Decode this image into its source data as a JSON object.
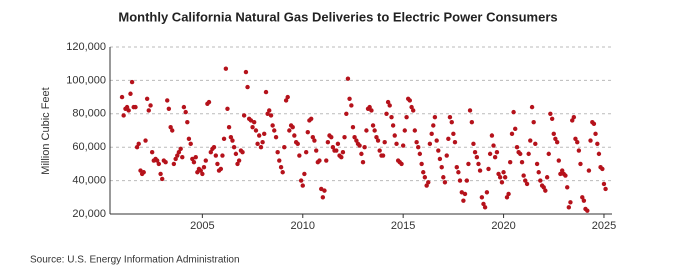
{
  "chart_data": {
    "type": "scatter",
    "title": "Monthly California Natural Gas Deliveries to Electric Power Consumers",
    "y_label": "Million Cubic Feet",
    "source": "Source: U.S. Energy Information Administration",
    "color": "#b5121b",
    "grid": true,
    "xlim": [
      2000.4,
      2025.4
    ],
    "xticks": [
      2005,
      2010,
      2015,
      2020,
      2025
    ],
    "ylim": [
      20000,
      120000
    ],
    "yticks": [
      {
        "value": 20000,
        "label": "20,000"
      },
      {
        "value": 40000,
        "label": "40,000"
      },
      {
        "value": 60000,
        "label": "60,000"
      },
      {
        "value": 80000,
        "label": "80,000"
      },
      {
        "value": 100000,
        "label": "100,000"
      },
      {
        "value": 120000,
        "label": "120,000"
      }
    ],
    "x": [
      2001.0,
      2001.08,
      2001.17,
      2001.25,
      2001.33,
      2001.42,
      2001.5,
      2001.58,
      2001.67,
      2001.75,
      2001.83,
      2001.92,
      2002.0,
      2002.08,
      2002.17,
      2002.25,
      2002.33,
      2002.42,
      2002.5,
      2002.58,
      2002.67,
      2002.75,
      2002.83,
      2002.92,
      2003.0,
      2003.08,
      2003.17,
      2003.25,
      2003.33,
      2003.42,
      2003.5,
      2003.58,
      2003.67,
      2003.75,
      2003.83,
      2003.92,
      2004.0,
      2004.08,
      2004.17,
      2004.25,
      2004.33,
      2004.42,
      2004.5,
      2004.58,
      2004.67,
      2004.75,
      2004.83,
      2004.92,
      2005.0,
      2005.08,
      2005.17,
      2005.25,
      2005.33,
      2005.42,
      2005.5,
      2005.58,
      2005.67,
      2005.75,
      2005.83,
      2005.92,
      2006.0,
      2006.08,
      2006.17,
      2006.25,
      2006.33,
      2006.42,
      2006.5,
      2006.58,
      2006.67,
      2006.75,
      2006.83,
      2006.92,
      2007.0,
      2007.08,
      2007.17,
      2007.25,
      2007.33,
      2007.42,
      2007.5,
      2007.58,
      2007.67,
      2007.75,
      2007.83,
      2007.92,
      2008.0,
      2008.08,
      2008.17,
      2008.25,
      2008.33,
      2008.42,
      2008.5,
      2008.58,
      2008.67,
      2008.75,
      2008.83,
      2008.92,
      2009.0,
      2009.08,
      2009.17,
      2009.25,
      2009.33,
      2009.42,
      2009.5,
      2009.58,
      2009.67,
      2009.75,
      2009.83,
      2009.92,
      2010.0,
      2010.08,
      2010.17,
      2010.25,
      2010.33,
      2010.42,
      2010.5,
      2010.58,
      2010.67,
      2010.75,
      2010.83,
      2010.92,
      2011.0,
      2011.08,
      2011.17,
      2011.25,
      2011.33,
      2011.42,
      2011.5,
      2011.58,
      2011.67,
      2011.75,
      2011.83,
      2011.92,
      2012.0,
      2012.08,
      2012.17,
      2012.25,
      2012.33,
      2012.42,
      2012.5,
      2012.58,
      2012.67,
      2012.75,
      2012.83,
      2012.92,
      2013.0,
      2013.08,
      2013.17,
      2013.25,
      2013.33,
      2013.42,
      2013.5,
      2013.58,
      2013.67,
      2013.75,
      2013.83,
      2013.92,
      2014.0,
      2014.08,
      2014.17,
      2014.25,
      2014.33,
      2014.42,
      2014.5,
      2014.58,
      2014.67,
      2014.75,
      2014.83,
      2014.92,
      2015.0,
      2015.08,
      2015.17,
      2015.25,
      2015.33,
      2015.42,
      2015.5,
      2015.58,
      2015.67,
      2015.75,
      2015.83,
      2015.92,
      2016.0,
      2016.08,
      2016.17,
      2016.25,
      2016.33,
      2016.42,
      2016.5,
      2016.58,
      2016.67,
      2016.75,
      2016.83,
      2016.92,
      2017.0,
      2017.08,
      2017.17,
      2017.25,
      2017.33,
      2017.42,
      2017.5,
      2017.58,
      2017.67,
      2017.75,
      2017.83,
      2017.92,
      2018.0,
      2018.08,
      2018.17,
      2018.25,
      2018.33,
      2018.42,
      2018.5,
      2018.58,
      2018.67,
      2018.75,
      2018.83,
      2018.92,
      2019.0,
      2019.08,
      2019.17,
      2019.25,
      2019.33,
      2019.42,
      2019.5,
      2019.58,
      2019.67,
      2019.75,
      2019.83,
      2019.92,
      2020.0,
      2020.08,
      2020.17,
      2020.25,
      2020.33,
      2020.42,
      2020.5,
      2020.58,
      2020.67,
      2020.75,
      2020.83,
      2020.92,
      2021.0,
      2021.08,
      2021.17,
      2021.25,
      2021.33,
      2021.42,
      2021.5,
      2021.58,
      2021.67,
      2021.75,
      2021.83,
      2021.92,
      2022.0,
      2022.08,
      2022.17,
      2022.25,
      2022.33,
      2022.42,
      2022.5,
      2022.58,
      2022.67,
      2022.75,
      2022.83,
      2022.92,
      2023.0,
      2023.08,
      2023.17,
      2023.25,
      2023.33,
      2023.42,
      2023.5,
      2023.58,
      2023.67,
      2023.75,
      2023.83,
      2023.92,
      2024.0,
      2024.08,
      2024.17,
      2024.25,
      2024.33,
      2024.42,
      2024.5,
      2024.58,
      2024.67,
      2024.75,
      2024.83,
      2024.92,
      2025.0,
      2025.08
    ],
    "values": [
      90000,
      79000,
      83000,
      84000,
      82000,
      92000,
      99000,
      84000,
      84000,
      60000,
      62000,
      46000,
      44000,
      45000,
      64000,
      89000,
      82000,
      85000,
      57000,
      52000,
      53000,
      52000,
      50000,
      44000,
      41000,
      52000,
      51000,
      88000,
      83000,
      72000,
      70000,
      50000,
      53000,
      55000,
      57000,
      59000,
      54000,
      84000,
      81000,
      75000,
      65000,
      62000,
      53000,
      51000,
      54000,
      45000,
      47000,
      46000,
      44000,
      48000,
      52000,
      86000,
      87000,
      57000,
      59000,
      60000,
      55000,
      50000,
      46000,
      47000,
      55000,
      65000,
      107000,
      83000,
      72000,
      66000,
      64000,
      60000,
      56000,
      50000,
      52000,
      58000,
      57000,
      79000,
      105000,
      96000,
      77000,
      76000,
      72000,
      75000,
      70000,
      62000,
      67000,
      60000,
      63000,
      68000,
      93000,
      80000,
      82000,
      79000,
      73000,
      70000,
      66000,
      57000,
      52000,
      48000,
      45000,
      60000,
      88000,
      90000,
      70000,
      73000,
      72000,
      67000,
      63000,
      62000,
      55000,
      40000,
      37000,
      44000,
      57000,
      69000,
      76000,
      77000,
      66000,
      64000,
      58000,
      51000,
      52000,
      35000,
      30000,
      34000,
      52000,
      63000,
      67000,
      66000,
      60000,
      58000,
      58000,
      62000,
      55000,
      54000,
      57000,
      66000,
      80000,
      101000,
      89000,
      85000,
      72000,
      66000,
      64000,
      62000,
      61000,
      56000,
      51000,
      60000,
      70000,
      83000,
      84000,
      82000,
      73000,
      70000,
      66000,
      64000,
      58000,
      55000,
      55000,
      63000,
      80000,
      87000,
      85000,
      78000,
      73000,
      67000,
      62000,
      52000,
      51000,
      50000,
      61000,
      70000,
      78000,
      89000,
      88000,
      84000,
      82000,
      70000,
      63000,
      60000,
      56000,
      50000,
      45000,
      42000,
      37000,
      39000,
      62000,
      68000,
      73000,
      78000,
      64000,
      58000,
      53000,
      48000,
      42000,
      39000,
      55000,
      65000,
      78000,
      75000,
      68000,
      63000,
      48000,
      45000,
      40000,
      33000,
      28000,
      32000,
      40000,
      50000,
      82000,
      75000,
      62000,
      57000,
      54000,
      50000,
      46000,
      30000,
      26000,
      24000,
      33000,
      47000,
      56000,
      67000,
      61000,
      54000,
      57000,
      44000,
      42000,
      39000,
      45000,
      42000,
      30000,
      32000,
      51000,
      68000,
      81000,
      71000,
      60000,
      57000,
      56000,
      51000,
      43000,
      40000,
      38000,
      56000,
      64000,
      84000,
      75000,
      62000,
      50000,
      45000,
      40000,
      37000,
      36000,
      34000,
      42000,
      56000,
      80000,
      77000,
      68000,
      65000,
      63000,
      52000,
      44000,
      46000,
      44000,
      43000,
      36000,
      24000,
      27000,
      76000,
      78000,
      65000,
      63000,
      58000,
      50000,
      30000,
      28000,
      23000,
      22000,
      46000,
      64000,
      75000,
      74000,
      68000,
      62000,
      56000,
      48000,
      47000,
      38000,
      35000
    ]
  }
}
